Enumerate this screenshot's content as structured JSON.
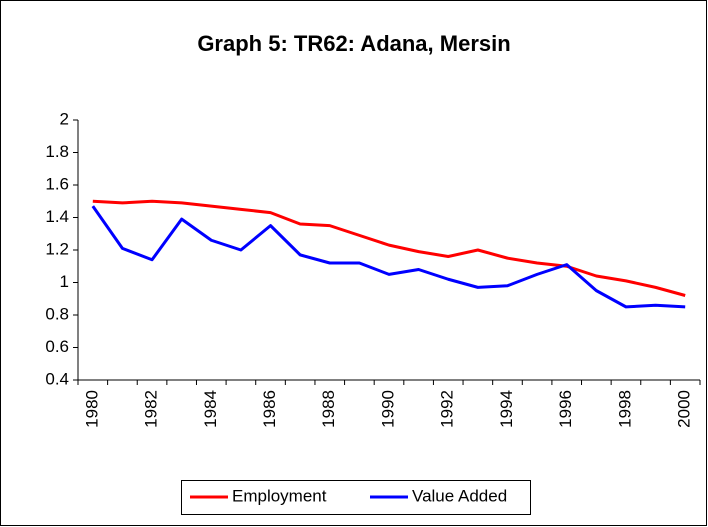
{
  "chart_data": {
    "type": "line",
    "title": "Graph 5: TR62: Adana, Mersin",
    "categories": [
      "1980",
      null,
      "1982",
      null,
      "1984",
      null,
      "1986",
      null,
      "1988",
      null,
      "1990",
      null,
      "1992",
      null,
      "1994",
      null,
      "1996",
      null,
      "1998",
      null,
      "2000"
    ],
    "series": [
      {
        "name": "Employment",
        "color": "#ff0000",
        "values": [
          1.5,
          1.49,
          1.5,
          1.49,
          1.47,
          1.45,
          1.43,
          1.36,
          1.35,
          1.29,
          1.23,
          1.19,
          1.16,
          1.2,
          1.15,
          1.12,
          1.1,
          1.04,
          1.01,
          0.97,
          0.92
        ]
      },
      {
        "name": "Value Added",
        "color": "#0000ff",
        "values": [
          1.47,
          1.21,
          1.14,
          1.39,
          1.26,
          1.2,
          1.35,
          1.17,
          1.12,
          1.12,
          1.05,
          1.08,
          1.02,
          0.97,
          0.98,
          1.05,
          1.11,
          0.95,
          0.85,
          0.86,
          0.85
        ]
      }
    ],
    "ylim": [
      0.4,
      2
    ],
    "yticks": [
      0.4,
      0.6,
      0.8,
      1,
      1.2,
      1.4,
      1.6,
      1.8,
      2
    ],
    "legend": "bottom"
  }
}
